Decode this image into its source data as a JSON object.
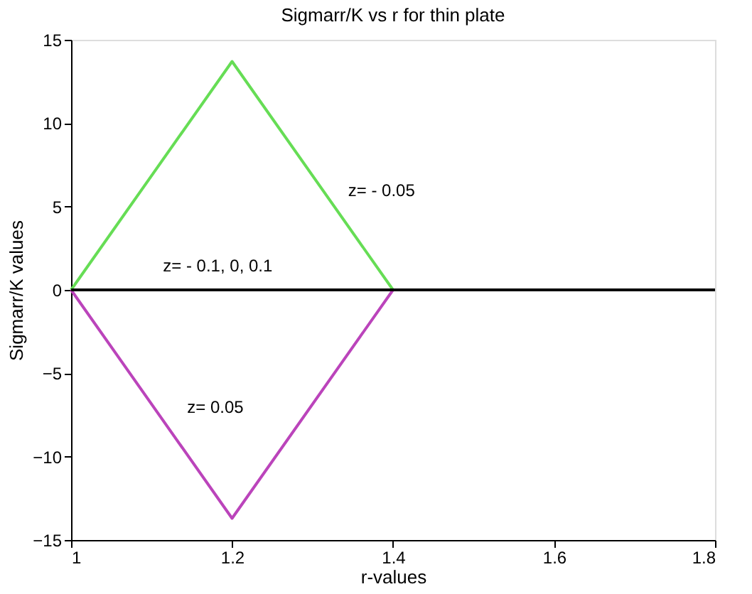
{
  "chart_data": {
    "type": "line",
    "title": "Sigmarr/K vs r for thin plate",
    "xlabel": "r-values",
    "ylabel": "Sigmarr/K  values",
    "xlim": [
      1,
      1.8
    ],
    "xticks": [
      1,
      1.2,
      1.4,
      1.6,
      1.8
    ],
    "ylim": [
      -15,
      15
    ],
    "yticks": [
      -15,
      -10,
      -5,
      0,
      5,
      10,
      15
    ],
    "grid": false,
    "series": [
      {
        "color": "#66dd55",
        "x": [
          1,
          1.2,
          1.4
        ],
        "values": [
          0,
          13.7,
          0
        ]
      },
      {
        "color": "#bb44bb",
        "x": [
          1,
          1.2,
          1.4
        ],
        "values": [
          0,
          -13.7,
          0
        ]
      },
      {
        "color": "#000000",
        "x": [
          1,
          1.8
        ],
        "values": [
          0,
          0
        ]
      }
    ],
    "annotations": [
      {
        "text": "z= - 0.05",
        "x": 1.33,
        "y": 4.5
      },
      {
        "text": "z= - 0.1, 0, 0.1",
        "x": 1.1,
        "y": 0
      },
      {
        "text": "z= 0.05",
        "x": 1.13,
        "y": -8.5
      }
    ]
  }
}
